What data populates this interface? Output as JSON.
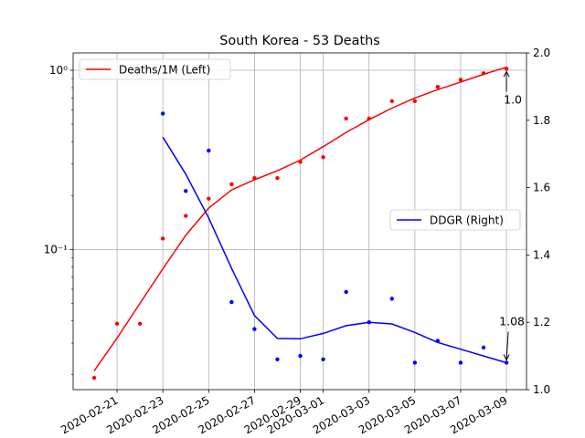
{
  "chart_data": {
    "type": "line",
    "title": "South Korea - 53 Deaths",
    "x": [
      "2020-02-20",
      "2020-02-21",
      "2020-02-22",
      "2020-02-23",
      "2020-02-24",
      "2020-02-25",
      "2020-02-26",
      "2020-02-27",
      "2020-02-28",
      "2020-02-29",
      "2020-03-01",
      "2020-03-02",
      "2020-03-03",
      "2020-03-04",
      "2020-03-05",
      "2020-03-06",
      "2020-03-07",
      "2020-03-08",
      "2020-03-09"
    ],
    "x_tick_labels": [
      "2020-02-21",
      "2020-02-23",
      "2020-02-25",
      "2020-02-27",
      "2020-02-29",
      "2020-03-01",
      "2020-03-03",
      "2020-03-05",
      "2020-03-07",
      "2020-03-09"
    ],
    "grid": true,
    "left_axis": {
      "scale": "log",
      "ylim": [
        0.0165,
        1.25
      ],
      "ticks": [
        {
          "value": 1,
          "label": "10⁰"
        },
        {
          "value": 0.1,
          "label": "10⁻¹"
        }
      ]
    },
    "right_axis": {
      "scale": "linear",
      "ylim": [
        1.0,
        2.0
      ],
      "ticks": [
        {
          "value": 1.0,
          "label": "1.0"
        },
        {
          "value": 1.2,
          "label": "1.2"
        },
        {
          "value": 1.4,
          "label": "1.4"
        },
        {
          "value": 1.6,
          "label": "1.6"
        },
        {
          "value": 1.8,
          "label": "1.8"
        },
        {
          "value": 2.0,
          "label": "2.0"
        }
      ]
    },
    "series": [
      {
        "name": "Deaths/1M (Left)",
        "axis": "left",
        "color": "#ff0000",
        "legend_position": "upper-left",
        "points_x": [
          "2020-02-20",
          "2020-02-21",
          "2020-02-22",
          "2020-02-23",
          "2020-02-24",
          "2020-02-25",
          "2020-02-26",
          "2020-02-27",
          "2020-02-28",
          "2020-02-29",
          "2020-03-01",
          "2020-03-02",
          "2020-03-03",
          "2020-03-04",
          "2020-03-05",
          "2020-03-06",
          "2020-03-07",
          "2020-03-08",
          "2020-03-09"
        ],
        "points": [
          0.0192,
          0.0385,
          0.0385,
          0.115,
          0.154,
          0.192,
          0.231,
          0.25,
          0.25,
          0.308,
          0.327,
          0.538,
          0.538,
          0.673,
          0.673,
          0.808,
          0.885,
          0.962,
          1.02
        ],
        "line_x": [
          "2020-02-20",
          "2020-02-21",
          "2020-02-22",
          "2020-02-23",
          "2020-02-24",
          "2020-02-25",
          "2020-02-26",
          "2020-02-27",
          "2020-02-28",
          "2020-02-29",
          "2020-03-01",
          "2020-03-02",
          "2020-03-03",
          "2020-03-04",
          "2020-03-05",
          "2020-03-06",
          "2020-03-07",
          "2020-03-08",
          "2020-03-09"
        ],
        "line": [
          0.021,
          0.032,
          0.05,
          0.078,
          0.12,
          0.17,
          0.215,
          0.245,
          0.275,
          0.315,
          0.375,
          0.45,
          0.53,
          0.615,
          0.7,
          0.78,
          0.86,
          0.95,
          1.04
        ]
      },
      {
        "name": "DDGR (Right)",
        "axis": "right",
        "color": "#0000ff",
        "legend_position": "center-right",
        "points_x": [
          "2020-02-23",
          "2020-02-24",
          "2020-02-25",
          "2020-02-26",
          "2020-02-27",
          "2020-02-28",
          "2020-02-29",
          "2020-03-01",
          "2020-03-02",
          "2020-03-03",
          "2020-03-04",
          "2020-03-05",
          "2020-03-06",
          "2020-03-07",
          "2020-03-08",
          "2020-03-09"
        ],
        "points": [
          1.82,
          1.59,
          1.71,
          1.26,
          1.18,
          1.09,
          1.1,
          1.09,
          1.29,
          1.2,
          1.27,
          1.08,
          1.145,
          1.08,
          1.125,
          1.08
        ],
        "line_x": [
          "2020-02-23",
          "2020-02-24",
          "2020-02-25",
          "2020-02-26",
          "2020-02-27",
          "2020-02-28",
          "2020-02-29",
          "2020-03-01",
          "2020-03-02",
          "2020-03-03",
          "2020-03-04",
          "2020-03-05",
          "2020-03-06",
          "2020-03-07",
          "2020-03-08",
          "2020-03-09"
        ],
        "line": [
          1.75,
          1.64,
          1.51,
          1.36,
          1.22,
          1.152,
          1.151,
          1.167,
          1.19,
          1.2,
          1.195,
          1.17,
          1.14,
          1.12,
          1.1,
          1.08
        ]
      }
    ],
    "annotations": [
      {
        "text": "1.0",
        "x": "2020-03-09",
        "axis": "left",
        "y": 1.02
      },
      {
        "text": "1.08",
        "x": "2020-03-09",
        "axis": "right",
        "y": 1.08
      }
    ]
  }
}
